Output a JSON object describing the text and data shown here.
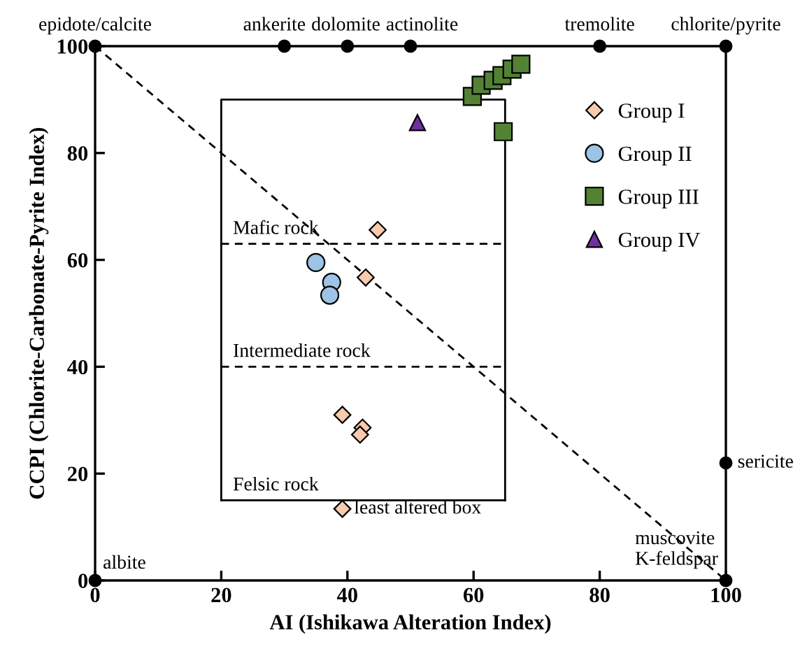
{
  "chart_data": {
    "type": "scatter",
    "xlabel": "AI (Ishikawa Alteration Index)",
    "ylabel": "CCPI (Chlorite-Carbonate-Pyrite Index)",
    "xlim": [
      0,
      100
    ],
    "ylim": [
      0,
      100
    ],
    "xticks": [
      0,
      20,
      40,
      60,
      80,
      100
    ],
    "yticks": [
      0,
      20,
      40,
      60,
      80,
      100
    ],
    "grid": false,
    "legend": "top right",
    "series": [
      {
        "type": "line",
        "color": "#000000",
        "line_style": "dashed",
        "marker": "none",
        "x": [
          0,
          100
        ],
        "values": [
          100,
          0
        ]
      },
      {
        "type": "line",
        "color": "#000000",
        "line_style": "solid",
        "marker": "none",
        "x": [
          20,
          20,
          65,
          65
        ],
        "values": [
          15,
          90,
          90,
          15
        ]
      },
      {
        "type": "line",
        "color": "#000000",
        "line_style": "solid",
        "marker": "none",
        "x": [
          20,
          65
        ],
        "values": [
          15,
          15
        ]
      },
      {
        "type": "line",
        "color": "#000000",
        "line_style": "dashed",
        "marker": "none",
        "x": [
          20,
          65
        ],
        "values": [
          63,
          63
        ]
      },
      {
        "type": "line",
        "color": "#000000",
        "line_style": "dashed",
        "marker": "none",
        "x": [
          20,
          65
        ],
        "values": [
          40,
          40
        ]
      },
      {
        "color": "#000000",
        "marker": "circle",
        "x": [
          0,
          30,
          40,
          50,
          80,
          100,
          100,
          100,
          0
        ],
        "values": [
          100,
          100,
          100,
          100,
          100,
          100,
          22,
          0,
          0
        ]
      },
      {
        "name": "Group I",
        "color": "#f8cbad",
        "marker": "diamond",
        "x": [
          44.8,
          42.9,
          39.2,
          42.4,
          42.0,
          39.2
        ],
        "values": [
          65.6,
          56.7,
          31.0,
          28.6,
          27.3,
          13.4
        ]
      },
      {
        "name": "Group II",
        "color": "#9dc3e6",
        "marker": "circle",
        "x": [
          35.0,
          37.5,
          37.2
        ],
        "values": [
          59.5,
          55.8,
          53.4
        ]
      },
      {
        "name": "Group III",
        "color": "#548235",
        "marker": "square",
        "x": [
          59.8,
          61.2,
          63.1,
          64.5,
          66.1,
          67.5,
          64.7
        ],
        "values": [
          90.6,
          92.7,
          93.6,
          94.5,
          95.7,
          96.6,
          84.0
        ]
      },
      {
        "name": "Group IV",
        "color": "#7030a0",
        "marker": "triangle",
        "x": [
          51.1
        ],
        "values": [
          85.7
        ]
      }
    ],
    "annotations": [
      {
        "text": "epidote/calcite",
        "x": 0,
        "y": 100
      },
      {
        "text": "ankerite",
        "x": 30,
        "y": 100
      },
      {
        "text": "dolomite",
        "x": 40,
        "y": 100
      },
      {
        "text": "actinolite",
        "x": 50,
        "y": 100
      },
      {
        "text": "tremolite",
        "x": 80,
        "y": 100
      },
      {
        "text": "chlorite/pyrite",
        "x": 100,
        "y": 100
      },
      {
        "text": "sericite",
        "x": 100,
        "y": 22
      },
      {
        "text": "muscovite\nK-feldspar",
        "x": 100,
        "y": 0
      },
      {
        "text": "albite",
        "x": 0,
        "y": 0
      },
      {
        "text": "Mafic rock",
        "x": 20,
        "y": 63
      },
      {
        "text": "Intermediate rock",
        "x": 20,
        "y": 40
      },
      {
        "text": "Felsic rock",
        "x": 20,
        "y": 15
      },
      {
        "text": "least altered box",
        "x": 39.2,
        "y": 13.4
      }
    ]
  }
}
